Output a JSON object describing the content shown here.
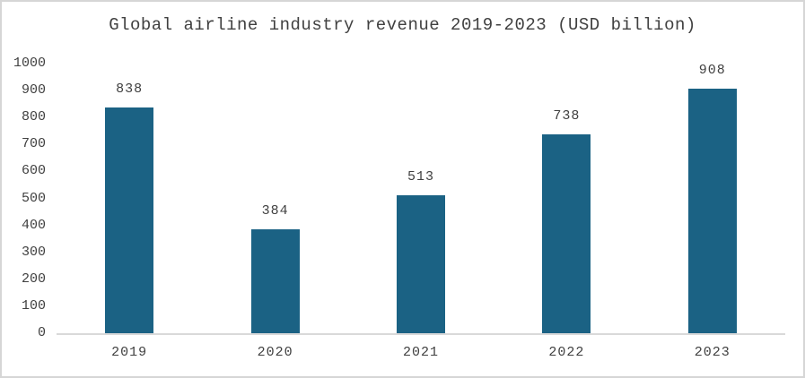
{
  "chart_data": {
    "type": "bar",
    "title": "Global airline industry revenue 2019-2023 (USD billion)",
    "categories": [
      "2019",
      "2020",
      "2021",
      "2022",
      "2023"
    ],
    "values": [
      838,
      384,
      513,
      738,
      908
    ],
    "data_labels": [
      "838",
      "384",
      "513",
      "738",
      "908"
    ],
    "xlabel": "",
    "ylabel": "",
    "ylim": [
      0,
      1000
    ],
    "ytick_interval": 100,
    "yticks": [
      0,
      100,
      200,
      300,
      400,
      500,
      600,
      700,
      800,
      900,
      1000
    ],
    "grid": false,
    "legend_position": "none",
    "colors": {
      "bar_fill": "#1B6284",
      "text": "#404040",
      "axis_line": "#D9D9D9",
      "frame_border": "#D6D6D6",
      "background": "#FFFFFF"
    }
  }
}
